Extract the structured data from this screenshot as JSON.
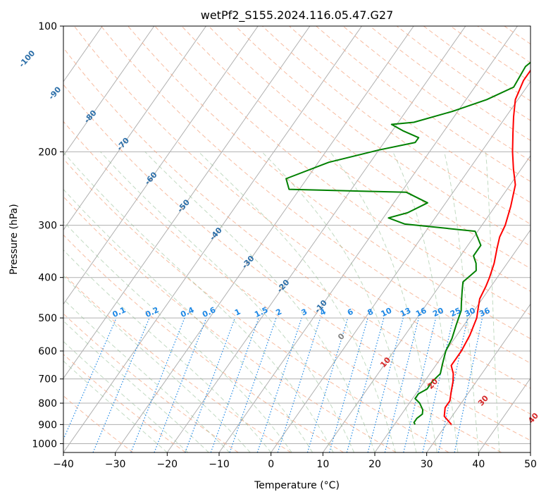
{
  "chart_data": {
    "type": "line",
    "chart_kind": "skew-t log-p",
    "title": "wetPf2_S155.2024.116.05.47.G27",
    "xlabel": "Temperature (°C)",
    "ylabel": "Pressure (hPa)",
    "xlim": [
      -40,
      50
    ],
    "ylim": [
      1050,
      100
    ],
    "yscale": "log",
    "grid": true,
    "x_ticks": [
      -40,
      -30,
      -20,
      -10,
      0,
      10,
      20,
      30,
      40,
      50
    ],
    "y_ticks": [
      100,
      200,
      300,
      400,
      500,
      600,
      700,
      800,
      900,
      1000
    ],
    "series": [
      {
        "color": "#ff0000",
        "kind": "temperature",
        "points": [
          [
            31.0,
            900
          ],
          [
            28.5,
            860
          ],
          [
            27.5,
            820
          ],
          [
            27.5,
            790
          ],
          [
            26.5,
            750
          ],
          [
            25.5,
            710
          ],
          [
            24.5,
            680
          ],
          [
            23.0,
            650
          ],
          [
            23.0,
            600
          ],
          [
            22.5,
            550
          ],
          [
            21.5,
            500
          ],
          [
            20.5,
            475
          ],
          [
            19.5,
            450
          ],
          [
            19.0,
            420
          ],
          [
            18.5,
            400
          ],
          [
            17.5,
            370
          ],
          [
            16.0,
            340
          ],
          [
            15.0,
            320
          ],
          [
            14.5,
            300
          ],
          [
            13.0,
            270
          ],
          [
            11.0,
            240
          ],
          [
            8.5,
            220
          ],
          [
            6.0,
            200
          ],
          [
            3.5,
            180
          ],
          [
            1.5,
            165
          ],
          [
            -0.5,
            150
          ],
          [
            -1.5,
            135
          ],
          [
            -1.5,
            120
          ],
          [
            -0.5,
            110
          ],
          [
            0.5,
            100
          ]
        ]
      },
      {
        "color": "#008000",
        "kind": "dewpoint",
        "points": [
          [
            24.0,
            900
          ],
          [
            23.5,
            890
          ],
          [
            23.5,
            870
          ],
          [
            24.0,
            850
          ],
          [
            23.5,
            830
          ],
          [
            22.0,
            800
          ],
          [
            20.5,
            780
          ],
          [
            20.5,
            760
          ],
          [
            21.5,
            740
          ],
          [
            21.5,
            710
          ],
          [
            22.0,
            680
          ],
          [
            21.0,
            640
          ],
          [
            20.0,
            600
          ],
          [
            19.5,
            560
          ],
          [
            18.5,
            520
          ],
          [
            17.5,
            480
          ],
          [
            16.5,
            460
          ],
          [
            15.0,
            430
          ],
          [
            14.0,
            410
          ],
          [
            15.0,
            385
          ],
          [
            14.0,
            370
          ],
          [
            12.5,
            355
          ],
          [
            12.5,
            335
          ],
          [
            9.5,
            310
          ],
          [
            -5.0,
            298
          ],
          [
            -9.0,
            288
          ],
          [
            -6.0,
            280
          ],
          [
            -3.5,
            265
          ],
          [
            -9.0,
            250
          ],
          [
            -32.0,
            246
          ],
          [
            -34.0,
            232
          ],
          [
            -28.0,
            212
          ],
          [
            -20.0,
            198
          ],
          [
            -14.0,
            190
          ],
          [
            -14.0,
            185
          ],
          [
            -18.0,
            178
          ],
          [
            -21.0,
            172
          ],
          [
            -17.0,
            170
          ],
          [
            -11.0,
            160
          ],
          [
            -6.0,
            150
          ],
          [
            -2.5,
            140
          ],
          [
            -3.0,
            125
          ],
          [
            -1.5,
            115
          ],
          [
            -1.0,
            105
          ],
          [
            -0.5,
            100
          ]
        ]
      }
    ],
    "annotations": {
      "dry_adiabat_labels": [
        "-100",
        "-90",
        "-80",
        "-70",
        "-60",
        "-50",
        "-40",
        "-30",
        "-20",
        "-10"
      ],
      "mixing_ratio_labels": [
        "0.1",
        "0.2",
        "0.4",
        "0.6",
        "1",
        "1.5",
        "2",
        "3",
        "4",
        "6",
        "8",
        "10",
        "13",
        "16",
        "20",
        "25",
        "30",
        "36"
      ],
      "moist_adiabat_labels": [
        "0",
        "10",
        "20",
        "30",
        "40"
      ]
    },
    "colors": {
      "dry_adiabat": "#f4a582",
      "moist_adiabat": "#8fbc8f",
      "mixing_ratio": "#1e88e5",
      "isotherm": "#8c8c8c",
      "dry_label": "#2b6ea8",
      "mixing_label": "#1e88e5",
      "moist_label_zero": "#808080",
      "moist_label": "#d62728"
    }
  }
}
